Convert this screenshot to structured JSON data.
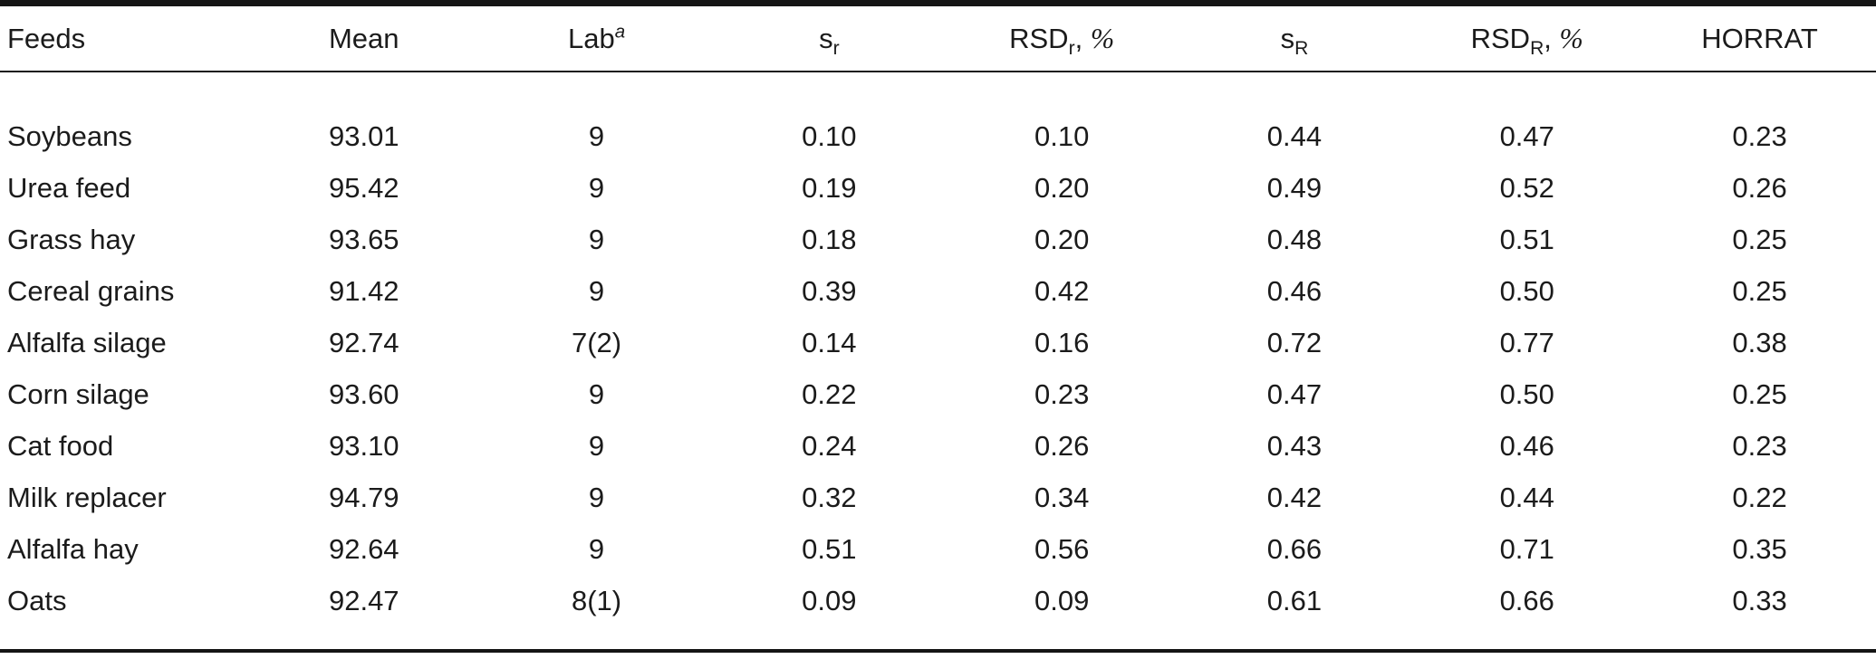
{
  "table": {
    "columns": [
      {
        "key": "feeds"
      },
      {
        "key": "mean"
      },
      {
        "key": "lab"
      },
      {
        "key": "s-r"
      },
      {
        "key": "rsd-r"
      },
      {
        "key": "s-R"
      },
      {
        "key": "rsd-R"
      },
      {
        "key": "horrat"
      }
    ],
    "header": {
      "feeds": "Feeds",
      "mean": "Mean",
      "lab": {
        "base": "Lab",
        "sup": "a"
      },
      "s_r": {
        "base": "s",
        "sub": "r"
      },
      "rsd_r": {
        "base": "RSD",
        "sub": "r",
        "sep": ", ",
        "unit": "%"
      },
      "s_R": {
        "base": "s",
        "sub": "R"
      },
      "rsd_R": {
        "base": "RSD",
        "sub": "R",
        "sep": ", ",
        "unit": "%"
      },
      "horrat": "HORRAT"
    },
    "rows": [
      [
        "Soybeans",
        "93.01",
        "9",
        "0.10",
        "0.10",
        "0.44",
        "0.47",
        "0.23"
      ],
      [
        "Urea feed",
        "95.42",
        "9",
        "0.19",
        "0.20",
        "0.49",
        "0.52",
        "0.26"
      ],
      [
        "Grass hay",
        "93.65",
        "9",
        "0.18",
        "0.20",
        "0.48",
        "0.51",
        "0.25"
      ],
      [
        "Cereal grains",
        "91.42",
        "9",
        "0.39",
        "0.42",
        "0.46",
        "0.50",
        "0.25"
      ],
      [
        "Alfalfa silage",
        "92.74",
        "7(2)",
        "0.14",
        "0.16",
        "0.72",
        "0.77",
        "0.38"
      ],
      [
        "Corn silage",
        "93.60",
        "9",
        "0.22",
        "0.23",
        "0.47",
        "0.50",
        "0.25"
      ],
      [
        "Cat food",
        "93.10",
        "9",
        "0.24",
        "0.26",
        "0.43",
        "0.46",
        "0.23"
      ],
      [
        "Milk replacer",
        "94.79",
        "9",
        "0.32",
        "0.34",
        "0.42",
        "0.44",
        "0.22"
      ],
      [
        "Alfalfa hay",
        "92.64",
        "9",
        "0.51",
        "0.56",
        "0.66",
        "0.71",
        "0.35"
      ],
      [
        "Oats",
        "92.47",
        "8(1)",
        "0.09",
        "0.09",
        "0.61",
        "0.66",
        "0.33"
      ]
    ]
  },
  "chart_data": {
    "type": "table",
    "title": "",
    "columns": [
      "Feeds",
      "Mean",
      "Lab(a)",
      "s_r",
      "RSD_r, %",
      "s_R",
      "RSD_R, %",
      "HORRAT"
    ],
    "rows": [
      [
        "Soybeans",
        93.01,
        "9",
        0.1,
        0.1,
        0.44,
        0.47,
        0.23
      ],
      [
        "Urea feed",
        95.42,
        "9",
        0.19,
        0.2,
        0.49,
        0.52,
        0.26
      ],
      [
        "Grass hay",
        93.65,
        "9",
        0.18,
        0.2,
        0.48,
        0.51,
        0.25
      ],
      [
        "Cereal grains",
        91.42,
        "9",
        0.39,
        0.42,
        0.46,
        0.5,
        0.25
      ],
      [
        "Alfalfa silage",
        92.74,
        "7(2)",
        0.14,
        0.16,
        0.72,
        0.77,
        0.38
      ],
      [
        "Corn silage",
        93.6,
        "9",
        0.22,
        0.23,
        0.47,
        0.5,
        0.25
      ],
      [
        "Cat food",
        93.1,
        "9",
        0.24,
        0.26,
        0.43,
        0.46,
        0.23
      ],
      [
        "Milk replacer",
        94.79,
        "9",
        0.32,
        0.34,
        0.42,
        0.44,
        0.22
      ],
      [
        "Alfalfa hay",
        92.64,
        "9",
        0.51,
        0.56,
        0.66,
        0.71,
        0.35
      ],
      [
        "Oats",
        92.47,
        "8(1)",
        0.09,
        0.09,
        0.61,
        0.66,
        0.33
      ]
    ]
  }
}
